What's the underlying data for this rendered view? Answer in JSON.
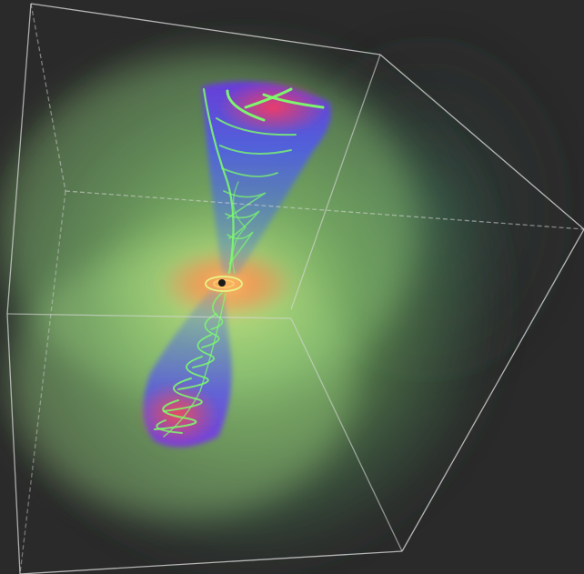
{
  "scene": {
    "background_color": "#2a2a2a",
    "bounding_box_color": "#d8d8d8",
    "glow_color": "#8bd46a",
    "cone_color": "#5a4df0",
    "core_color": "#ff5a3a",
    "field_line_color": "#7cff6a"
  }
}
